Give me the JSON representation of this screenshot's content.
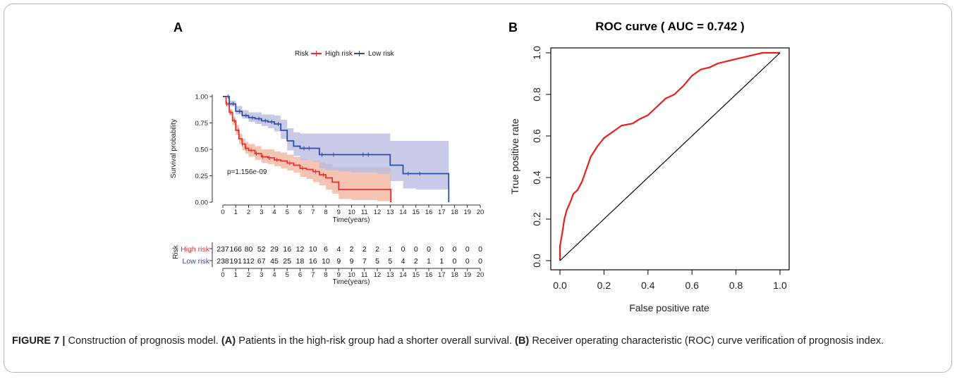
{
  "panel_a": {
    "letter": "A",
    "legend": {
      "title": "Risk",
      "items": [
        {
          "label": "High risk",
          "color": "#e8312e"
        },
        {
          "label": "Low risk",
          "color": "#2d4fa3"
        }
      ]
    },
    "ylabel": "Survival probability",
    "xlabel": "Time(years)",
    "pvalue": "p=1.156e-09",
    "risk_table": {
      "title": "Risk",
      "xlabel": "Time(years)",
      "rows": [
        {
          "label": "High risk",
          "color": "#e8312e",
          "values": [
            "237",
            "166",
            "80",
            "52",
            "29",
            "16",
            "12",
            "10",
            "6",
            "4",
            "2",
            "2",
            "2",
            "1",
            "0",
            "0",
            "0",
            "0",
            "0",
            "0",
            "0"
          ]
        },
        {
          "label": "Low risk",
          "color": "#2d4fa3",
          "values": [
            "238",
            "191",
            "112",
            "67",
            "45",
            "25",
            "18",
            "16",
            "10",
            "9",
            "9",
            "7",
            "5",
            "5",
            "4",
            "2",
            "1",
            "1",
            "0",
            "0",
            "0"
          ]
        }
      ]
    }
  },
  "panel_b": {
    "letter": "B",
    "title": "ROC curve ( AUC =  0.742 )",
    "xlabel": "False positive rate",
    "ylabel": "True positive rate"
  },
  "caption": {
    "figure": "FIGURE 7 |",
    "lead": " Construction of prognosis model. ",
    "a_tag": "(A)",
    "a_text": " Patients in the high-risk group had a shorter overall survival. ",
    "b_tag": "(B)",
    "b_text": " Receiver operating characteristic (ROC) curve verification of prognosis index."
  },
  "chart_data": [
    {
      "type": "line",
      "chart": "kaplan-meier",
      "xlabel": "Time(years)",
      "ylabel": "Survival probability",
      "xlim": [
        0,
        20
      ],
      "ylim": [
        0,
        1
      ],
      "x_ticks": [
        0,
        1,
        2,
        3,
        4,
        5,
        6,
        7,
        8,
        9,
        10,
        11,
        12,
        13,
        14,
        15,
        16,
        17,
        18,
        19,
        20
      ],
      "y_ticks": [
        "0.00",
        "0.25",
        "0.50",
        "0.75",
        "1.00"
      ],
      "legend": "top",
      "series": [
        {
          "name": "High risk",
          "color": "#e8312e",
          "band_color": "#f4b49c",
          "x": [
            0,
            0.25,
            0.5,
            0.75,
            1.0,
            1.25,
            1.5,
            1.75,
            2.0,
            2.5,
            3.0,
            3.5,
            4.0,
            4.5,
            5.0,
            5.5,
            6.0,
            6.5,
            7.0,
            7.5,
            8.0,
            8.5,
            9.0,
            10.0,
            12.0,
            13.0,
            13.05
          ],
          "y": [
            1.0,
            0.93,
            0.85,
            0.77,
            0.68,
            0.6,
            0.55,
            0.51,
            0.49,
            0.46,
            0.43,
            0.42,
            0.4,
            0.39,
            0.37,
            0.35,
            0.32,
            0.31,
            0.29,
            0.26,
            0.23,
            0.19,
            0.12,
            0.12,
            0.12,
            0.12,
            0.0
          ],
          "lower": [
            1.0,
            0.91,
            0.82,
            0.73,
            0.64,
            0.55,
            0.49,
            0.46,
            0.43,
            0.4,
            0.37,
            0.36,
            0.34,
            0.32,
            0.3,
            0.28,
            0.24,
            0.22,
            0.19,
            0.16,
            0.12,
            0.08,
            0.03,
            0.02,
            0.01,
            0.0,
            0.0
          ],
          "upper": [
            1.0,
            0.95,
            0.88,
            0.81,
            0.73,
            0.65,
            0.6,
            0.57,
            0.55,
            0.53,
            0.5,
            0.5,
            0.48,
            0.47,
            0.45,
            0.43,
            0.41,
            0.4,
            0.39,
            0.38,
            0.36,
            0.33,
            0.33,
            0.33,
            0.33,
            0.33,
            0.33
          ]
        },
        {
          "name": "Low risk",
          "color": "#2d4fa3",
          "band_color": "#b9bbe0",
          "x": [
            0,
            0.5,
            1.0,
            1.5,
            2.0,
            2.5,
            3.0,
            3.5,
            4.0,
            4.5,
            5.0,
            5.5,
            6.0,
            7.0,
            7.5,
            8.0,
            9.0,
            10.0,
            12.0,
            13.0,
            14.0,
            15.0,
            17.0,
            17.5,
            17.55
          ],
          "y": [
            1.0,
            0.93,
            0.86,
            0.82,
            0.8,
            0.79,
            0.77,
            0.76,
            0.74,
            0.68,
            0.58,
            0.53,
            0.51,
            0.51,
            0.45,
            0.45,
            0.45,
            0.45,
            0.45,
            0.35,
            0.27,
            0.27,
            0.27,
            0.27,
            0.0
          ],
          "lower": [
            1.0,
            0.91,
            0.83,
            0.79,
            0.76,
            0.74,
            0.72,
            0.7,
            0.67,
            0.6,
            0.49,
            0.44,
            0.4,
            0.38,
            0.32,
            0.3,
            0.29,
            0.28,
            0.27,
            0.2,
            0.13,
            0.12,
            0.12,
            0.12,
            0.12
          ],
          "upper": [
            1.0,
            0.96,
            0.91,
            0.87,
            0.85,
            0.85,
            0.83,
            0.83,
            0.82,
            0.78,
            0.7,
            0.66,
            0.65,
            0.65,
            0.65,
            0.65,
            0.65,
            0.65,
            0.65,
            0.58,
            0.58,
            0.58,
            0.58,
            0.58,
            0.58
          ]
        }
      ],
      "censor_x": {
        "High risk": [
          0.3,
          0.6,
          0.9,
          1.2,
          1.5,
          1.8,
          2.2,
          2.6,
          3.1,
          3.6,
          4.2,
          5.2,
          6.2,
          7.2,
          7.8
        ],
        "Low risk": [
          0.4,
          0.8,
          1.3,
          1.8,
          2.3,
          2.8,
          3.3,
          3.8,
          4.3,
          6.3,
          6.7,
          7.7,
          8.6,
          10.9,
          11.3,
          14.4,
          15.3
        ]
      },
      "annotation": "p=1.156e-09"
    },
    {
      "type": "line",
      "chart": "roc",
      "title": "ROC curve ( AUC =  0.742 )",
      "xlabel": "False positive rate",
      "ylabel": "True positive rate",
      "xlim": [
        0,
        1
      ],
      "ylim": [
        0,
        1
      ],
      "x_ticks": [
        "0.0",
        "0.2",
        "0.4",
        "0.6",
        "0.8",
        "1.0"
      ],
      "y_ticks": [
        "0.0",
        "0.2",
        "0.4",
        "0.6",
        "0.8",
        "1.0"
      ],
      "auc": 0.742,
      "series": [
        {
          "name": "",
          "color": "#e8201c",
          "x": [
            0.0,
            0.0,
            0.01,
            0.02,
            0.03,
            0.05,
            0.06,
            0.08,
            0.1,
            0.12,
            0.14,
            0.17,
            0.2,
            0.24,
            0.28,
            0.33,
            0.36,
            0.4,
            0.44,
            0.48,
            0.52,
            0.56,
            0.6,
            0.64,
            0.68,
            0.72,
            0.76,
            0.8,
            0.84,
            0.88,
            0.92,
            0.96,
            1.0
          ],
          "y": [
            0.0,
            0.07,
            0.13,
            0.2,
            0.24,
            0.29,
            0.32,
            0.34,
            0.38,
            0.44,
            0.5,
            0.55,
            0.59,
            0.62,
            0.65,
            0.66,
            0.68,
            0.7,
            0.74,
            0.78,
            0.8,
            0.84,
            0.89,
            0.92,
            0.93,
            0.95,
            0.96,
            0.97,
            0.98,
            0.99,
            1.0,
            1.0,
            1.0
          ]
        },
        {
          "name": "",
          "color": "#000000",
          "x": [
            0.0,
            1.0
          ],
          "y": [
            0.0,
            1.0
          ]
        }
      ]
    }
  ]
}
